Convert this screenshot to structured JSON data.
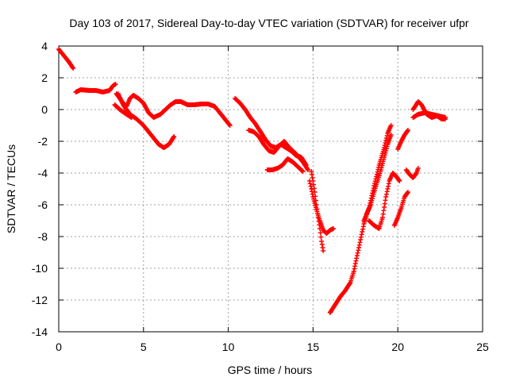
{
  "chart_data": {
    "type": "scatter",
    "title": "Day 103 of 2017, Sidereal Day-to-day VTEC variation (SDTVAR) for receiver ufpr",
    "xlabel": "GPS time / hours",
    "ylabel": "SDTVAR / TECUs",
    "xlim": [
      0,
      25
    ],
    "ylim": [
      -14,
      4
    ],
    "xticks": [
      "0",
      "5",
      "10",
      "15",
      "20",
      "25"
    ],
    "yticks": [
      "4",
      "2",
      "0",
      "-2",
      "-4",
      "-6",
      "-8",
      "-10",
      "-12",
      "-14"
    ],
    "grid": true,
    "marker": "+",
    "color": "#ff0000",
    "segments": [
      [
        [
          0.0,
          3.8
        ],
        [
          0.3,
          3.4
        ],
        [
          0.6,
          3.0
        ],
        [
          0.85,
          2.6
        ]
      ],
      [
        [
          1.0,
          1.1
        ],
        [
          1.3,
          1.25
        ],
        [
          1.8,
          1.2
        ],
        [
          2.2,
          1.2
        ],
        [
          2.6,
          1.1
        ],
        [
          3.0,
          1.2
        ],
        [
          3.2,
          1.5
        ],
        [
          3.35,
          1.6
        ]
      ],
      [
        [
          3.4,
          1.0
        ],
        [
          3.6,
          0.7
        ],
        [
          3.8,
          0.4
        ],
        [
          4.0,
          0.2
        ],
        [
          4.2,
          0.7
        ],
        [
          4.4,
          0.9
        ],
        [
          4.7,
          0.7
        ],
        [
          5.0,
          0.4
        ],
        [
          5.3,
          -0.2
        ],
        [
          5.6,
          -0.5
        ]
      ],
      [
        [
          3.5,
          1.0
        ],
        [
          3.8,
          0.3
        ],
        [
          4.0,
          0.0
        ],
        [
          4.2,
          -0.3
        ],
        [
          4.6,
          -0.6
        ],
        [
          5.0,
          -1.0
        ],
        [
          5.3,
          -1.4
        ],
        [
          5.6,
          -1.8
        ],
        [
          5.9,
          -2.2
        ],
        [
          6.2,
          -2.4
        ],
        [
          6.5,
          -2.2
        ],
        [
          6.8,
          -1.7
        ]
      ],
      [
        [
          3.3,
          0.3
        ],
        [
          3.6,
          0.0
        ],
        [
          4.0,
          -0.3
        ],
        [
          4.3,
          -0.5
        ]
      ],
      [
        [
          5.6,
          -0.5
        ],
        [
          6.0,
          -0.3
        ],
        [
          6.3,
          0.0
        ],
        [
          6.6,
          0.3
        ],
        [
          6.9,
          0.5
        ],
        [
          7.2,
          0.5
        ],
        [
          7.6,
          0.3
        ],
        [
          8.0,
          0.3
        ],
        [
          8.4,
          0.35
        ],
        [
          8.8,
          0.35
        ],
        [
          9.2,
          0.2
        ],
        [
          9.5,
          -0.2
        ],
        [
          9.8,
          -0.6
        ],
        [
          10.1,
          -1.0
        ]
      ],
      [
        [
          10.4,
          0.7
        ],
        [
          10.7,
          0.4
        ],
        [
          11.0,
          0.0
        ],
        [
          11.3,
          -0.5
        ],
        [
          11.6,
          -0.9
        ],
        [
          11.9,
          -1.4
        ],
        [
          12.2,
          -1.9
        ],
        [
          12.5,
          -2.3
        ],
        [
          12.8,
          -2.4
        ],
        [
          13.1,
          -2.2
        ],
        [
          13.4,
          -2.4
        ],
        [
          13.7,
          -2.6
        ],
        [
          14.0,
          -2.9
        ],
        [
          14.3,
          -3.0
        ],
        [
          14.6,
          -3.5
        ]
      ],
      [
        [
          11.2,
          -1.3
        ],
        [
          11.5,
          -1.4
        ],
        [
          11.8,
          -1.7
        ],
        [
          12.1,
          -2.2
        ],
        [
          12.4,
          -2.6
        ],
        [
          12.7,
          -2.7
        ],
        [
          13.0,
          -2.3
        ],
        [
          13.3,
          -2.0
        ],
        [
          13.6,
          -2.4
        ],
        [
          14.0,
          -2.8
        ],
        [
          14.4,
          -3.3
        ],
        [
          14.7,
          -3.8
        ]
      ],
      [
        [
          12.3,
          -3.8
        ],
        [
          12.6,
          -3.8
        ],
        [
          12.9,
          -3.7
        ],
        [
          13.2,
          -3.5
        ],
        [
          13.5,
          -3.1
        ],
        [
          13.8,
          -3.3
        ],
        [
          14.1,
          -3.6
        ],
        [
          14.4,
          -3.9
        ]
      ],
      [
        [
          14.9,
          -3.9
        ],
        [
          15.0,
          -4.5
        ],
        [
          15.1,
          -5.2
        ],
        [
          15.2,
          -6.0
        ],
        [
          15.3,
          -6.8
        ],
        [
          15.4,
          -7.5
        ],
        [
          15.5,
          -8.3
        ],
        [
          15.6,
          -8.9
        ]
      ],
      [
        [
          14.8,
          -4.5
        ],
        [
          15.0,
          -5.5
        ],
        [
          15.2,
          -6.3
        ],
        [
          15.4,
          -7.0
        ],
        [
          15.6,
          -7.6
        ],
        [
          15.8,
          -7.8
        ],
        [
          16.0,
          -7.6
        ],
        [
          16.2,
          -7.5
        ]
      ],
      [
        [
          16.0,
          -12.8
        ],
        [
          16.3,
          -12.3
        ],
        [
          16.6,
          -11.8
        ],
        [
          16.9,
          -11.4
        ],
        [
          17.2,
          -10.9
        ],
        [
          17.4,
          -10.2
        ],
        [
          17.6,
          -9.2
        ],
        [
          17.8,
          -8.2
        ],
        [
          18.0,
          -7.2
        ],
        [
          18.2,
          -6.5
        ],
        [
          18.4,
          -6.0
        ],
        [
          18.6,
          -5.2
        ],
        [
          18.8,
          -4.5
        ],
        [
          19.0,
          -3.8
        ],
        [
          19.2,
          -3.0
        ],
        [
          19.4,
          -2.2
        ],
        [
          19.6,
          -1.6
        ]
      ],
      [
        [
          18.0,
          -7.0
        ],
        [
          18.3,
          -6.2
        ],
        [
          18.6,
          -4.8
        ],
        [
          18.9,
          -3.5
        ],
        [
          19.2,
          -2.4
        ],
        [
          19.4,
          -1.5
        ],
        [
          19.6,
          -1.0
        ]
      ],
      [
        [
          18.3,
          -7.0
        ],
        [
          18.6,
          -7.3
        ],
        [
          18.9,
          -7.5
        ],
        [
          19.1,
          -6.8
        ],
        [
          19.3,
          -5.5
        ],
        [
          19.5,
          -4.5
        ],
        [
          19.7,
          -4.0
        ],
        [
          19.9,
          -4.2
        ],
        [
          20.1,
          -4.5
        ]
      ],
      [
        [
          19.8,
          -7.3
        ],
        [
          20.0,
          -6.8
        ],
        [
          20.2,
          -6.2
        ],
        [
          20.4,
          -5.5
        ],
        [
          20.6,
          -5.2
        ]
      ],
      [
        [
          20.0,
          -2.5
        ],
        [
          20.2,
          -2.0
        ],
        [
          20.4,
          -1.6
        ],
        [
          20.6,
          -1.3
        ]
      ],
      [
        [
          20.5,
          -3.8
        ],
        [
          20.7,
          -4.1
        ],
        [
          20.9,
          -4.3
        ],
        [
          21.1,
          -4.0
        ],
        [
          21.2,
          -3.7
        ]
      ],
      [
        [
          20.9,
          0.0
        ],
        [
          21.2,
          0.5
        ],
        [
          21.4,
          0.3
        ],
        [
          21.7,
          -0.3
        ],
        [
          22.0,
          -0.5
        ],
        [
          22.3,
          -0.4
        ],
        [
          22.6,
          -0.6
        ],
        [
          22.8,
          -0.6
        ]
      ],
      [
        [
          20.9,
          -0.5
        ],
        [
          21.2,
          -0.3
        ],
        [
          21.6,
          -0.2
        ],
        [
          22.0,
          -0.3
        ],
        [
          22.4,
          -0.4
        ],
        [
          22.8,
          -0.5
        ]
      ]
    ]
  }
}
